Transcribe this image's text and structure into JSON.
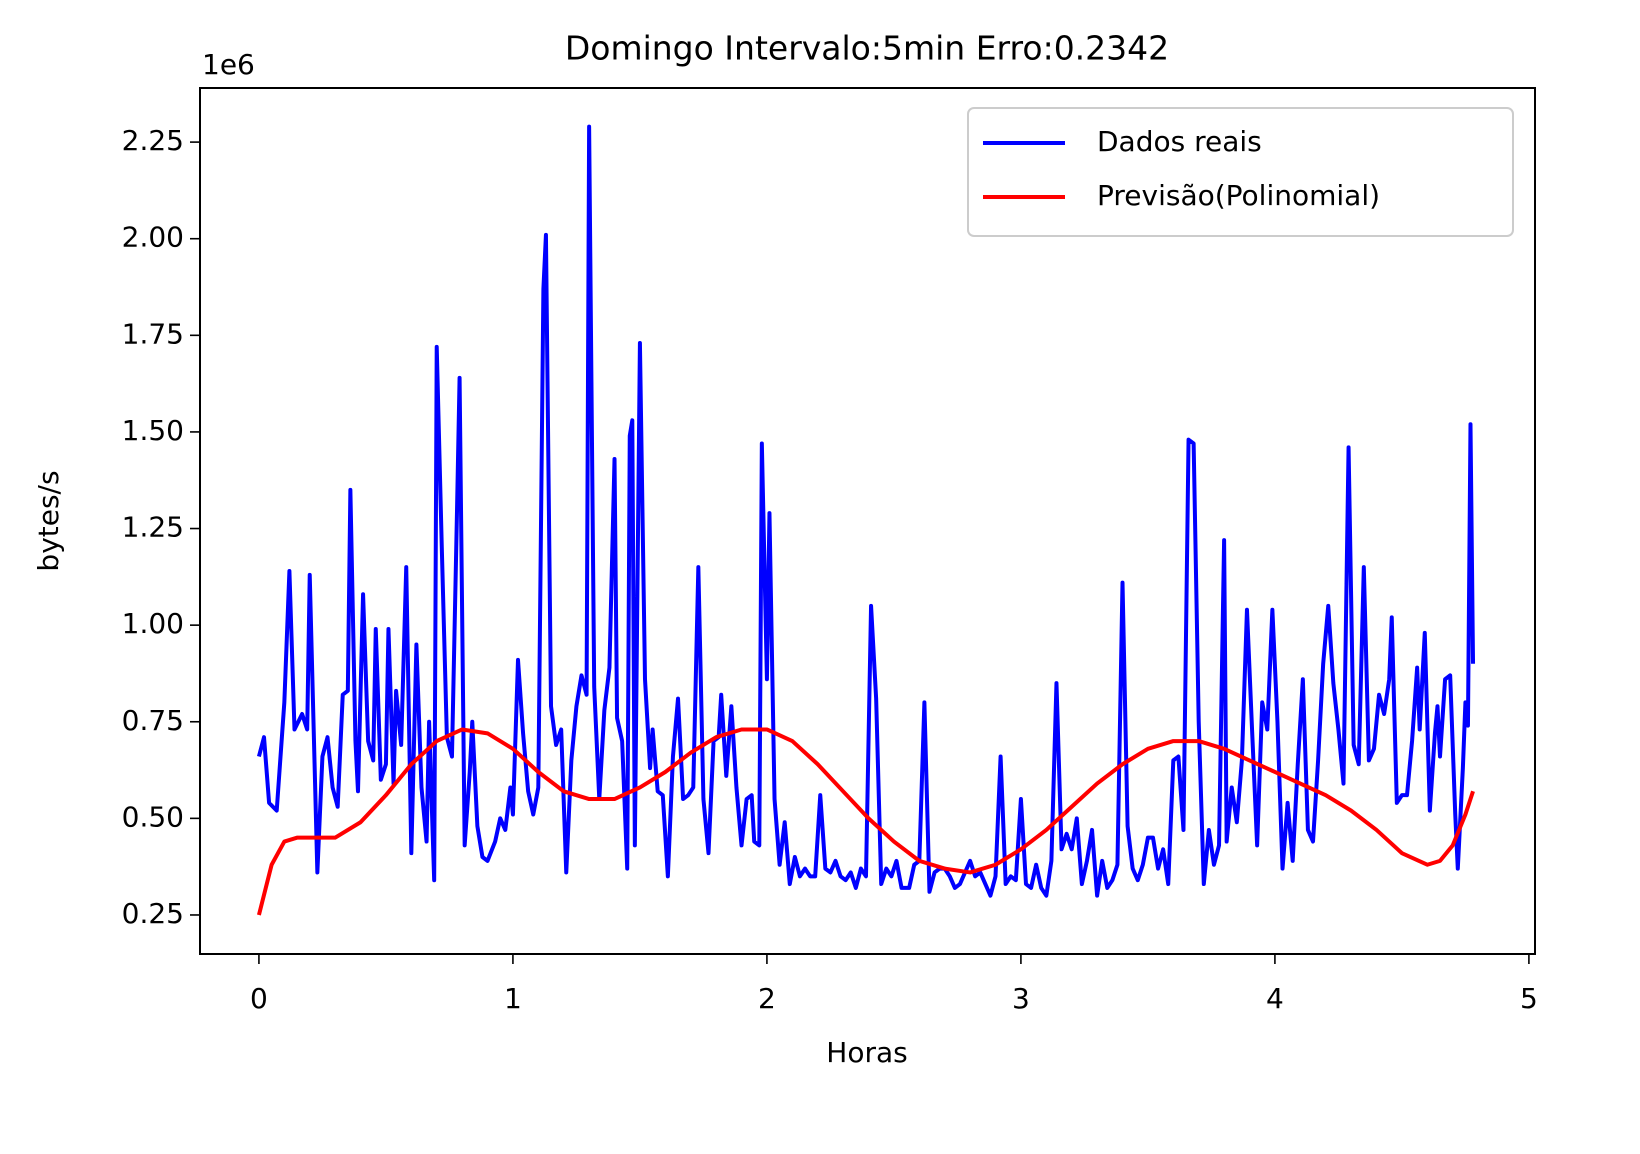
{
  "chart_data": {
    "type": "line",
    "title": "Domingo Intervalo:5min Erro:0.2342",
    "x_label": "Horas",
    "y_label": "bytes/s",
    "y_offset_label": "1e6",
    "xlim": [
      -0.232,
      5.024
    ],
    "ylim": [
      149000,
      2390000
    ],
    "xticks": [
      0,
      1,
      2,
      3,
      4,
      5
    ],
    "yticks": [
      {
        "value": 250000,
        "label": "0.25"
      },
      {
        "value": 500000,
        "label": "0.50"
      },
      {
        "value": 750000,
        "label": "0.75"
      },
      {
        "value": 1000000,
        "label": "1.00"
      },
      {
        "value": 1250000,
        "label": "1.25"
      },
      {
        "value": 1500000,
        "label": "1.50"
      },
      {
        "value": 1750000,
        "label": "1.75"
      },
      {
        "value": 2000000,
        "label": "2.00"
      },
      {
        "value": 2250000,
        "label": "2.25"
      }
    ],
    "grid": false,
    "legend": "upper right",
    "series": [
      {
        "name": "Dados reais",
        "color": "#0000ff",
        "x": [
          0.0,
          0.02,
          0.04,
          0.07,
          0.1,
          0.12,
          0.14,
          0.17,
          0.19,
          0.2,
          0.23,
          0.25,
          0.27,
          0.29,
          0.31,
          0.33,
          0.35,
          0.36,
          0.38,
          0.39,
          0.41,
          0.43,
          0.45,
          0.46,
          0.48,
          0.5,
          0.51,
          0.53,
          0.54,
          0.56,
          0.58,
          0.6,
          0.62,
          0.64,
          0.66,
          0.67,
          0.69,
          0.7,
          0.72,
          0.74,
          0.76,
          0.78,
          0.79,
          0.81,
          0.83,
          0.84,
          0.86,
          0.88,
          0.9,
          0.93,
          0.95,
          0.97,
          0.99,
          1.0,
          1.02,
          1.04,
          1.06,
          1.08,
          1.1,
          1.12,
          1.13,
          1.15,
          1.17,
          1.19,
          1.21,
          1.23,
          1.25,
          1.27,
          1.29,
          1.3,
          1.32,
          1.34,
          1.36,
          1.38,
          1.4,
          1.41,
          1.43,
          1.45,
          1.46,
          1.47,
          1.48,
          1.5,
          1.52,
          1.54,
          1.55,
          1.57,
          1.59,
          1.61,
          1.63,
          1.65,
          1.67,
          1.69,
          1.71,
          1.73,
          1.75,
          1.77,
          1.79,
          1.81,
          1.82,
          1.84,
          1.86,
          1.88,
          1.9,
          1.92,
          1.94,
          1.95,
          1.97,
          1.98,
          2.0,
          2.01,
          2.03,
          2.05,
          2.07,
          2.09,
          2.11,
          2.13,
          2.15,
          2.17,
          2.19,
          2.21,
          2.23,
          2.25,
          2.27,
          2.29,
          2.31,
          2.33,
          2.35,
          2.37,
          2.39,
          2.41,
          2.43,
          2.45,
          2.47,
          2.49,
          2.51,
          2.53,
          2.56,
          2.58,
          2.6,
          2.62,
          2.64,
          2.66,
          2.68,
          2.7,
          2.72,
          2.74,
          2.76,
          2.78,
          2.8,
          2.82,
          2.84,
          2.86,
          2.88,
          2.9,
          2.92,
          2.94,
          2.96,
          2.98,
          3.0,
          3.02,
          3.04,
          3.06,
          3.08,
          3.1,
          3.12,
          3.14,
          3.16,
          3.18,
          3.2,
          3.22,
          3.24,
          3.26,
          3.28,
          3.3,
          3.32,
          3.34,
          3.36,
          3.38,
          3.4,
          3.42,
          3.44,
          3.46,
          3.48,
          3.5,
          3.52,
          3.54,
          3.56,
          3.58,
          3.6,
          3.62,
          3.64,
          3.66,
          3.68,
          3.7,
          3.72,
          3.74,
          3.76,
          3.78,
          3.8,
          3.81,
          3.83,
          3.85,
          3.87,
          3.89,
          3.91,
          3.93,
          3.95,
          3.97,
          3.99,
          4.01,
          4.03,
          4.05,
          4.07,
          4.09,
          4.11,
          4.13,
          4.15,
          4.17,
          4.19,
          4.21,
          4.23,
          4.25,
          4.27,
          4.29,
          4.31,
          4.33,
          4.35,
          4.37,
          4.39,
          4.41,
          4.43,
          4.45,
          4.46,
          4.48,
          4.5,
          4.52,
          4.54,
          4.56,
          4.57,
          4.59,
          4.61,
          4.63,
          4.64,
          4.65,
          4.67,
          4.69,
          4.71,
          4.72,
          4.74,
          4.75,
          4.76,
          4.77,
          4.78
        ],
        "values": [
          660000,
          710000,
          540000,
          520000,
          800000,
          1140000,
          730000,
          770000,
          730000,
          1130000,
          360000,
          660000,
          710000,
          580000,
          530000,
          820000,
          830000,
          1350000,
          700000,
          570000,
          1080000,
          700000,
          650000,
          990000,
          600000,
          640000,
          990000,
          590000,
          830000,
          690000,
          1150000,
          410000,
          950000,
          580000,
          440000,
          750000,
          340000,
          1720000,
          1200000,
          710000,
          660000,
          1300000,
          1640000,
          430000,
          620000,
          750000,
          480000,
          400000,
          390000,
          440000,
          500000,
          470000,
          580000,
          510000,
          910000,
          720000,
          570000,
          510000,
          580000,
          1870000,
          2010000,
          790000,
          690000,
          730000,
          360000,
          650000,
          790000,
          870000,
          820000,
          2290000,
          840000,
          550000,
          780000,
          890000,
          1430000,
          760000,
          700000,
          370000,
          1490000,
          1530000,
          430000,
          1730000,
          860000,
          630000,
          730000,
          570000,
          560000,
          350000,
          660000,
          810000,
          550000,
          560000,
          580000,
          1150000,
          550000,
          410000,
          700000,
          710000,
          820000,
          610000,
          790000,
          580000,
          430000,
          550000,
          560000,
          440000,
          430000,
          1470000,
          860000,
          1290000,
          550000,
          380000,
          490000,
          330000,
          400000,
          350000,
          370000,
          350000,
          350000,
          560000,
          370000,
          360000,
          390000,
          350000,
          340000,
          360000,
          320000,
          370000,
          350000,
          1050000,
          810000,
          330000,
          370000,
          350000,
          390000,
          320000,
          320000,
          380000,
          390000,
          800000,
          310000,
          360000,
          370000,
          370000,
          350000,
          320000,
          330000,
          360000,
          390000,
          350000,
          360000,
          330000,
          300000,
          350000,
          660000,
          330000,
          350000,
          340000,
          550000,
          330000,
          320000,
          380000,
          320000,
          300000,
          390000,
          850000,
          420000,
          460000,
          420000,
          500000,
          330000,
          390000,
          470000,
          300000,
          390000,
          320000,
          340000,
          380000,
          1110000,
          480000,
          370000,
          340000,
          380000,
          450000,
          450000,
          370000,
          420000,
          330000,
          650000,
          660000,
          470000,
          1480000,
          1470000,
          750000,
          330000,
          470000,
          380000,
          430000,
          1220000,
          440000,
          580000,
          490000,
          650000,
          1040000,
          730000,
          430000,
          800000,
          730000,
          1040000,
          750000,
          370000,
          540000,
          390000,
          640000,
          860000,
          470000,
          440000,
          650000,
          900000,
          1050000,
          850000,
          730000,
          590000,
          1460000,
          690000,
          640000,
          1150000,
          650000,
          680000,
          820000,
          770000,
          860000,
          1020000,
          540000,
          560000,
          560000,
          700000,
          890000,
          730000,
          980000,
          520000,
          720000,
          790000,
          660000,
          860000,
          870000,
          510000,
          370000,
          630000,
          800000,
          740000,
          1520000,
          900000
        ]
      },
      {
        "name": "Previsão(Polinomial)",
        "color": "#ff0000",
        "x": [
          0,
          0.05,
          0.1,
          0.15,
          0.2,
          0.3,
          0.4,
          0.5,
          0.6,
          0.7,
          0.8,
          0.9,
          1.0,
          1.1,
          1.2,
          1.3,
          1.4,
          1.5,
          1.6,
          1.7,
          1.8,
          1.9,
          2.0,
          2.1,
          2.2,
          2.3,
          2.4,
          2.5,
          2.6,
          2.7,
          2.8,
          2.9,
          3.0,
          3.1,
          3.2,
          3.3,
          3.4,
          3.5,
          3.6,
          3.7,
          3.8,
          3.9,
          4.0,
          4.1,
          4.2,
          4.3,
          4.4,
          4.5,
          4.6,
          4.65,
          4.7,
          4.75,
          4.78
        ],
        "values": [
          250000,
          380000,
          440000,
          450000,
          450000,
          450000,
          490000,
          560000,
          640000,
          700000,
          730000,
          720000,
          680000,
          620000,
          570000,
          550000,
          550000,
          580000,
          620000,
          670000,
          710000,
          730000,
          730000,
          700000,
          640000,
          570000,
          500000,
          440000,
          390000,
          370000,
          360000,
          380000,
          420000,
          470000,
          530000,
          590000,
          640000,
          680000,
          700000,
          700000,
          680000,
          650000,
          620000,
          590000,
          560000,
          520000,
          470000,
          410000,
          380000,
          390000,
          430000,
          510000,
          570000
        ]
      }
    ]
  }
}
